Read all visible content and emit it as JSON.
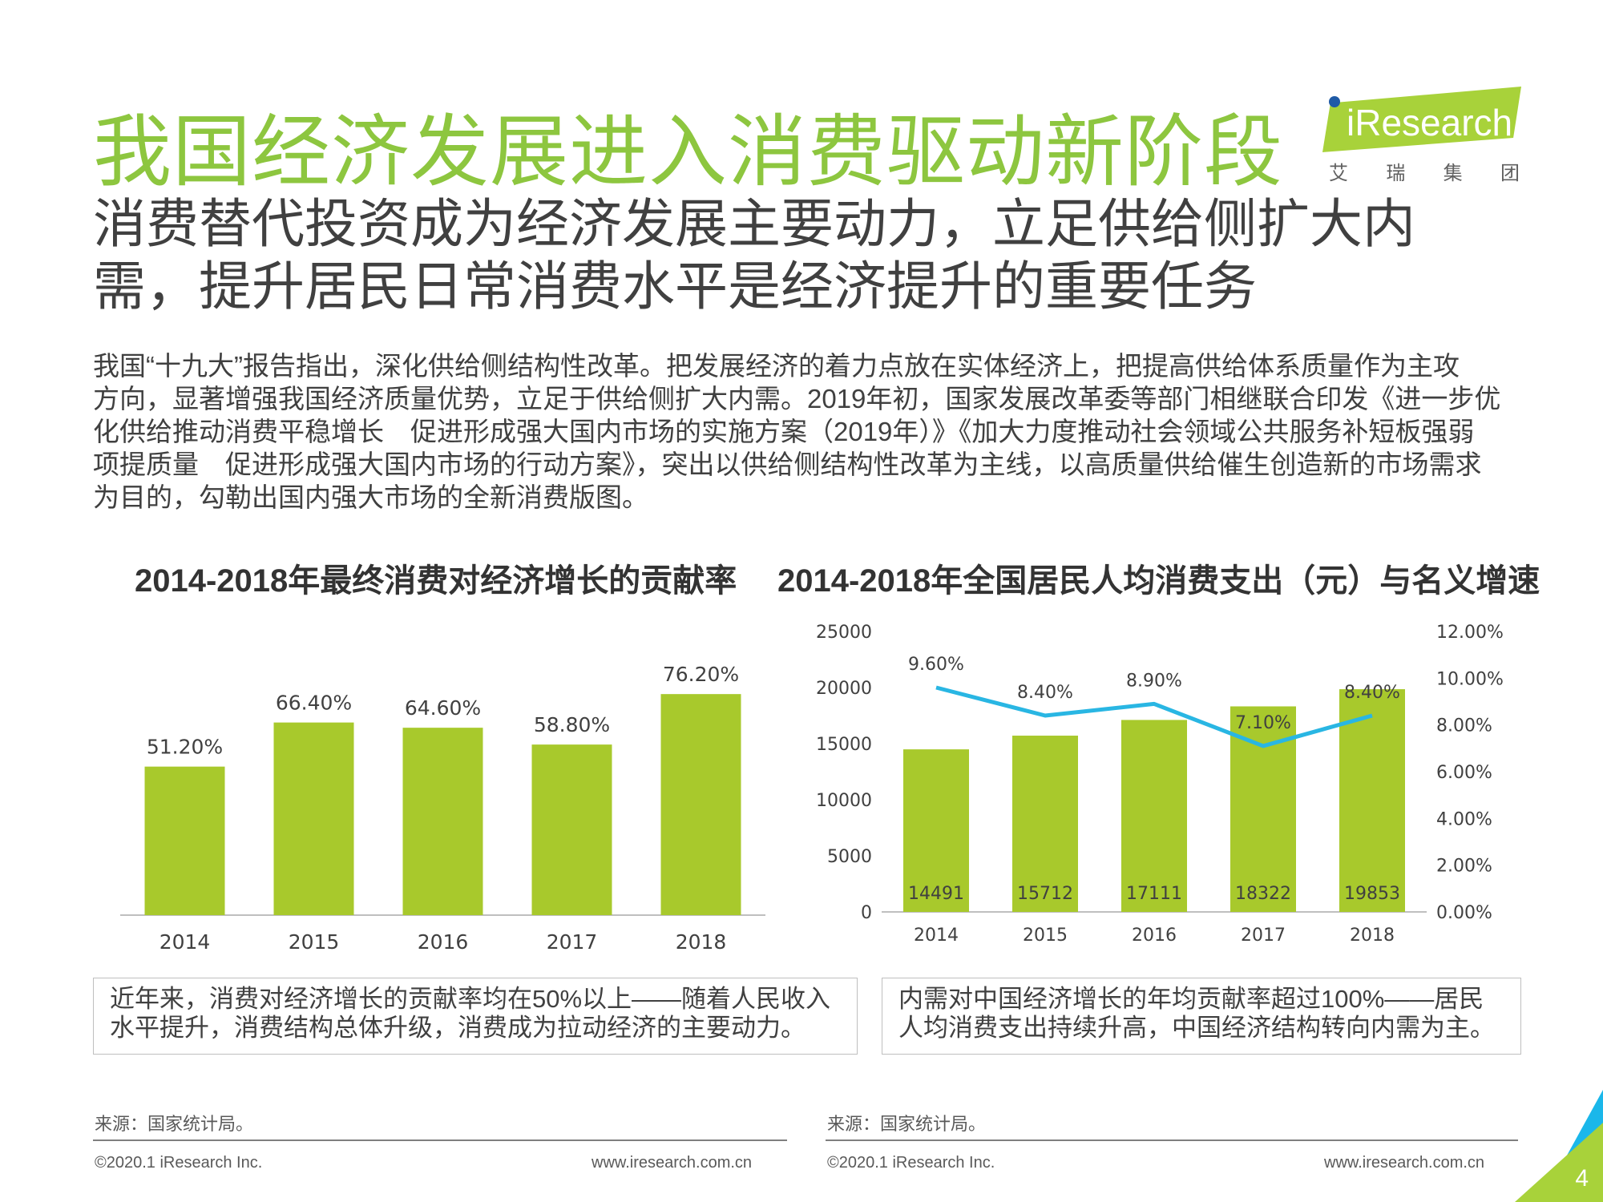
{
  "header": {
    "title": "我国经济发展进入消费驱动新阶段",
    "subtitle_lines": [
      "消费替代投资成为经济发展主要动力，立足供给侧扩大内",
      "需，提升居民日常消费水平是经济提升的重要任务"
    ]
  },
  "logo": {
    "name": "iResearch",
    "sub": [
      "艾",
      "瑞",
      "集",
      "团"
    ],
    "colors": {
      "banner": "#a8d23a",
      "dot": "#1f5aa6"
    }
  },
  "body_lines": [
    "我国“十九大”报告指出，深化供给侧结构性改革。把发展经济的着力点放在实体经济上，把提高供给体系质量作为主攻",
    "方向，显著增强我国经济质量优势，立足于供给侧扩大内需。2019年初，国家发展改革委等部门相继联合印发《进一步优",
    "化供给推动消费平稳增长　促进形成强大国内市场的实施方案（2019年）》《加大力度推动社会领域公共服务补短板强弱",
    "项提质量　促进形成强大国内市场的行动方案》，突出以供给侧结构性改革为主线，以高质量供给催生创造新的市场需求",
    "为目的，勾勒出国内强大市场的全新消费版图。"
  ],
  "chart_data": [
    {
      "type": "bar",
      "title": "2014-2018年最终消费对经济增长的贡献率",
      "categories": [
        "2014",
        "2015",
        "2016",
        "2017",
        "2018"
      ],
      "values": [
        51.2,
        66.4,
        64.6,
        58.8,
        76.2
      ],
      "data_labels": [
        "51.20%",
        "66.40%",
        "64.60%",
        "58.80%",
        "76.20%"
      ],
      "ylim": [
        0,
        100
      ],
      "color": "#a8c92c"
    },
    {
      "type": "bar",
      "title": "2014-2018年全国居民人均消费支出（元）与名义增速",
      "categories": [
        "2014",
        "2015",
        "2016",
        "2017",
        "2018"
      ],
      "series": [
        {
          "type": "bar",
          "values": [
            14491,
            15712,
            17111,
            18322,
            19853
          ],
          "labels": [
            "14491",
            "15712",
            "17111",
            "18322",
            "19853"
          ],
          "color": "#a8c92c",
          "axis": "left"
        },
        {
          "type": "line",
          "values": [
            9.6,
            8.4,
            8.9,
            7.1,
            8.4
          ],
          "labels": [
            "9.60%",
            "8.40%",
            "8.90%",
            "7.10%",
            "8.40%"
          ],
          "color": "#29b6e3",
          "axis": "right"
        }
      ],
      "y_left": {
        "range": [
          0,
          25000
        ],
        "ticks": [
          "0",
          "5000",
          "10000",
          "15000",
          "20000",
          "25000"
        ]
      },
      "y_right": {
        "range": [
          0,
          12
        ],
        "ticks": [
          "0.00%",
          "2.00%",
          "4.00%",
          "6.00%",
          "8.00%",
          "10.00%",
          "12.00%"
        ]
      }
    }
  ],
  "notes": {
    "left": [
      "近年来，消费对经济增长的贡献率均在50%以上——随着人民收入",
      "水平提升，消费结构总体升级，消费成为拉动经济的主要动力。"
    ],
    "right": [
      "内需对中国经济增长的年均贡献率超过100%——居民",
      "人均消费支出持续升高，中国经济结构转向内需为主。"
    ]
  },
  "footer": {
    "source": "来源：国家统计局。",
    "copyright": "©2020.1 iResearch Inc.",
    "url": "www.iresearch.com.cn",
    "page": "4"
  }
}
